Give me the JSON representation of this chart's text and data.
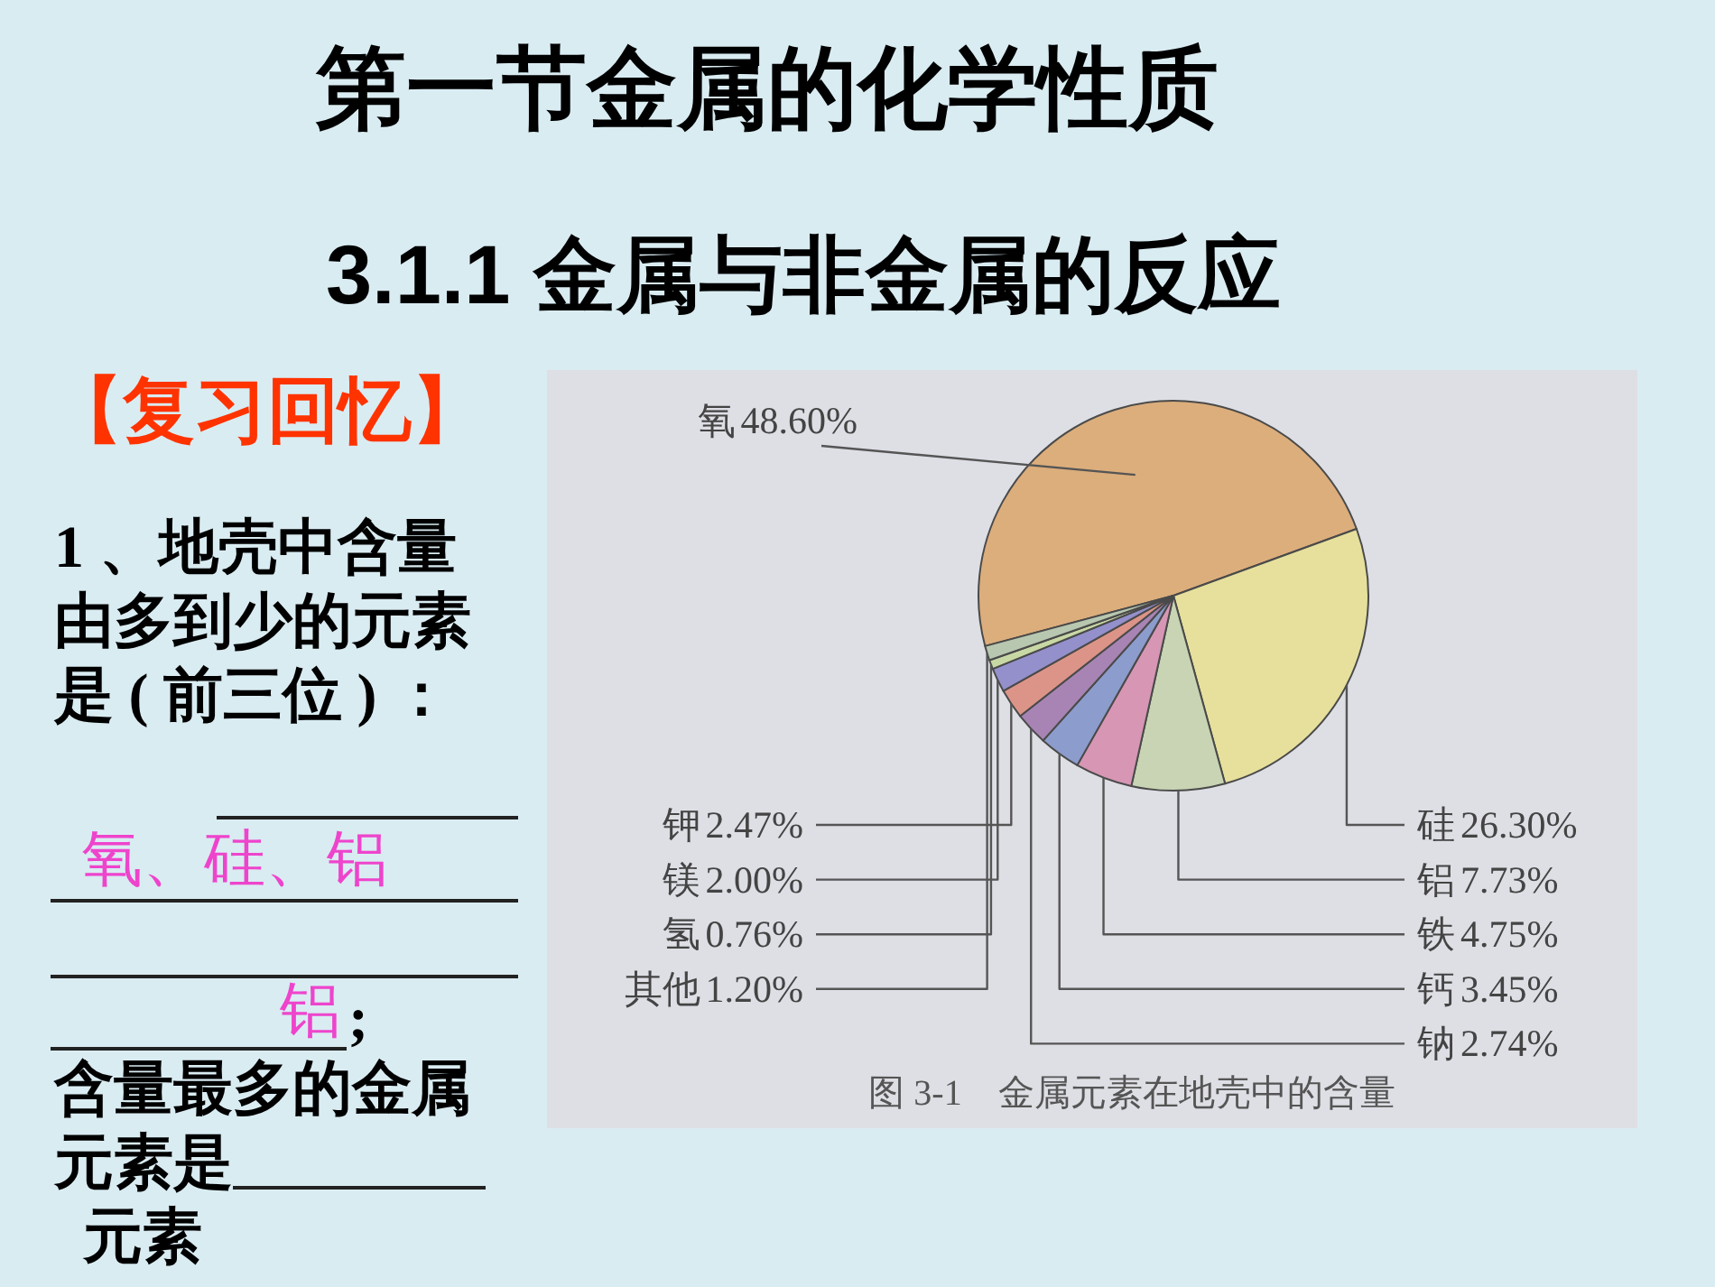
{
  "chart_data": {
    "type": "pie",
    "title": "第一节金属的化学性质",
    "subtitle": "3.1.1 金属与非金属的反应",
    "categories": [
      "氧",
      "硅",
      "铝",
      "铁",
      "钙",
      "钠",
      "钾",
      "镁",
      "氢",
      "其他"
    ],
    "values": [
      48.6,
      26.3,
      7.73,
      4.75,
      3.45,
      2.74,
      2.47,
      2.0,
      0.76,
      1.2
    ],
    "value_labels": [
      "48.60%",
      "26.30%",
      "7.73%",
      "4.75%",
      "3.45%",
      "2.74%",
      "2.47%",
      "2.00%",
      "0.76%",
      "1.20%"
    ],
    "colors": [
      "#dcae7c",
      "#e6e09c",
      "#c8d4b4",
      "#d696b4",
      "#8c9ccc",
      "#a884b4",
      "#dc9488",
      "#9490cc",
      "#c8d8a4",
      "#b8c8b0"
    ],
    "annotations": [
      "图 3-1　金属元素在地壳中的含量",
      "【复习回忆】",
      "1 、地壳中含量由多到少的元素是 ( 前三位 ) ：",
      "氧、硅、铝",
      "铝",
      ";",
      "含量最多的金属元素是",
      "元素"
    ]
  }
}
